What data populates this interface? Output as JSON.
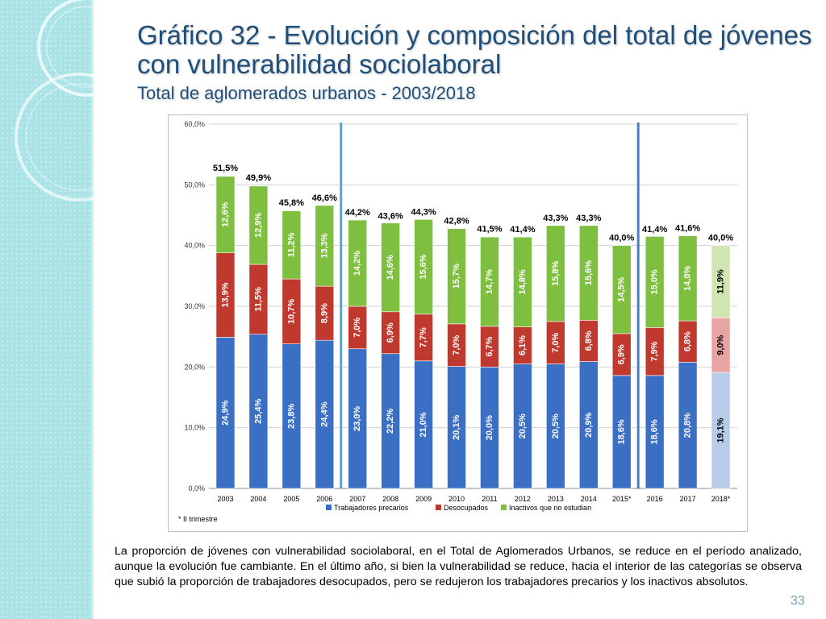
{
  "slide": {
    "title": "Gráfico 32 - Evolución y composición del total de jóvenes con vulnerabilidad sociolaboral",
    "subtitle": "Total de aglomerados urbanos - 2003/2018",
    "caption": "La proporción de jóvenes con vulnerabilidad sociolaboral, en el Total de Aglomerados Urbanos, se reduce en el período analizado, aunque la evolución fue cambiante. En el último año, si bien la vulnerabilidad se reduce, hacia el interior de las categorías se observa que subió la proporción de trabajadores desocupados, pero se redujeron los trabajadores precarios y los inactivos absolutos.",
    "page_number": "33"
  },
  "chart_data": {
    "type": "bar",
    "stacked": true,
    "categories": [
      "2003",
      "2004",
      "2005",
      "2006",
      "2007",
      "2008",
      "2009",
      "2010",
      "2011",
      "2012",
      "2013",
      "2014",
      "2015*",
      "2016",
      "2017",
      "2018*"
    ],
    "series": [
      {
        "name": "Trabajadores precarios",
        "color": "#3a6fc3",
        "labels": [
          "24,9%",
          "25,4%",
          "23,8%",
          "24,4%",
          "23,0%",
          "22,2%",
          "21,0%",
          "20,1%",
          "20,0%",
          "20,5%",
          "20,5%",
          "20,9%",
          "18,6%",
          "18,6%",
          "20,8%",
          "19,1%"
        ],
        "values": [
          24.9,
          25.4,
          23.8,
          24.4,
          23.0,
          22.2,
          21.0,
          20.1,
          20.0,
          20.5,
          20.5,
          20.9,
          18.6,
          18.6,
          20.8,
          19.1
        ]
      },
      {
        "name": "Desocupados",
        "color": "#c0392f",
        "labels": [
          "13,9%",
          "11,5%",
          "10,7%",
          "8,9%",
          "7,0%",
          "6,9%",
          "7,7%",
          "7,0%",
          "6,7%",
          "6,1%",
          "7,0%",
          "6,8%",
          "6,9%",
          "7,9%",
          "6,8%",
          "9,0%"
        ],
        "values": [
          13.9,
          11.5,
          10.7,
          8.9,
          7.0,
          6.9,
          7.7,
          7.0,
          6.7,
          6.1,
          7.0,
          6.8,
          6.9,
          7.9,
          6.8,
          9.0
        ]
      },
      {
        "name": "Inactivos que no estudian",
        "color": "#7fbf3f",
        "labels": [
          "12,6%",
          "12,9%",
          "11,2%",
          "13,3%",
          "14,2%",
          "14,6%",
          "15,6%",
          "15,7%",
          "14,7%",
          "14,8%",
          "15,8%",
          "15,6%",
          "14,5%",
          "15,0%",
          "14,0%",
          "11,9%"
        ],
        "values": [
          12.6,
          12.9,
          11.2,
          13.3,
          14.2,
          14.6,
          15.6,
          15.7,
          14.7,
          14.8,
          15.8,
          15.6,
          14.5,
          15.0,
          14.0,
          11.9
        ]
      }
    ],
    "totals": [
      "51,5%",
      "49,9%",
      "45,8%",
      "46,6%",
      "44,2%",
      "43,6%",
      "44,3%",
      "42,8%",
      "41,5%",
      "41,4%",
      "43,3%",
      "43,3%",
      "40,0%",
      "41,4%",
      "41,6%",
      "40,0%"
    ],
    "total_values": [
      51.5,
      49.9,
      45.8,
      46.6,
      44.2,
      43.6,
      44.3,
      42.8,
      41.5,
      41.4,
      43.3,
      43.3,
      40.0,
      41.4,
      41.6,
      40.0
    ],
    "highlight_last_colors": [
      "#b7cce9",
      "#e8a3a3",
      "#cfe6b3"
    ],
    "y_ticks": [
      "0,0%",
      "10,0%",
      "20,0%",
      "30,0%",
      "40,0%",
      "50,0%",
      "60,0%"
    ],
    "y_tick_values": [
      0,
      10,
      20,
      30,
      40,
      50,
      60
    ],
    "ylim": [
      0,
      60
    ],
    "grid": true,
    "separators_after": [
      "2006",
      "2015*"
    ],
    "note": "* II trimestre",
    "legend_position": "bottom"
  }
}
